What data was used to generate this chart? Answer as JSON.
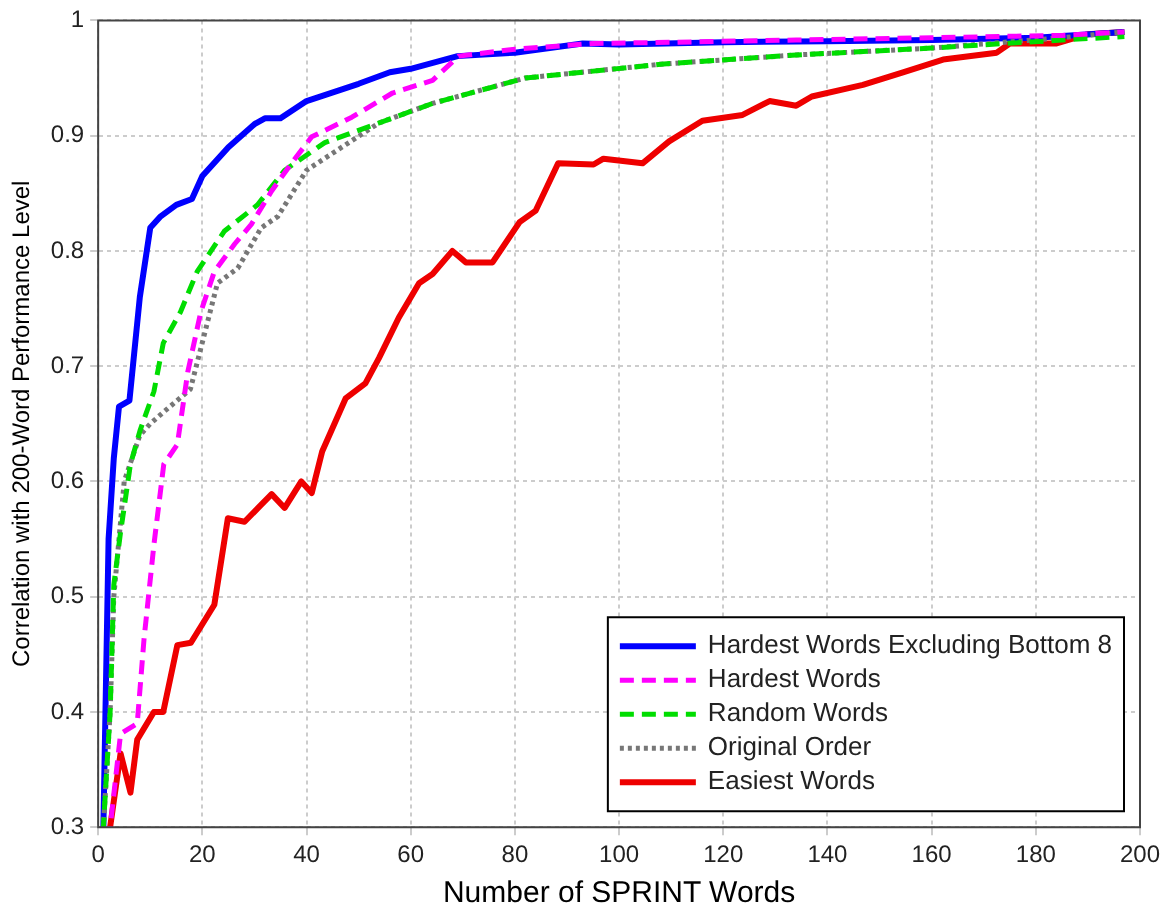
{
  "chart_data": {
    "type": "line",
    "xlabel": "Number of SPRINT Words",
    "ylabel": "Correlation with 200-Word Performance Level",
    "xlim": [
      0,
      200
    ],
    "xticks": [
      0,
      20,
      40,
      60,
      80,
      100,
      120,
      140,
      160,
      180,
      200
    ],
    "ylim": [
      0.3,
      1
    ],
    "yticks": [
      0.3,
      0.4,
      0.5,
      0.6,
      0.7,
      0.8,
      0.9,
      1
    ],
    "grid": true,
    "legend": "bottom right",
    "marker": "none",
    "series": [
      {
        "name": "Hardest Words Excluding Bottom 8",
        "color": "#0000ff",
        "line_style": "solid",
        "x": [
          1,
          2,
          3,
          4,
          6,
          8,
          10,
          12,
          15,
          18,
          20,
          25,
          30,
          32,
          35,
          40,
          50,
          56,
          60,
          69,
          80,
          93,
          100,
          120,
          140,
          160,
          180,
          197
        ],
        "values": [
          0.3,
          0.55,
          0.62,
          0.665,
          0.67,
          0.76,
          0.82,
          0.83,
          0.84,
          0.845,
          0.865,
          0.89,
          0.91,
          0.915,
          0.915,
          0.93,
          0.945,
          0.955,
          0.958,
          0.969,
          0.972,
          0.98,
          0.979,
          0.981,
          0.982,
          0.983,
          0.985,
          0.99
        ]
      },
      {
        "name": "Hardest Words",
        "color": "#ff00ff",
        "line_style": "dashed",
        "x": [
          2.3,
          4.3,
          7.5,
          8.8,
          10.7,
          12.6,
          15.2,
          17.2,
          19.7,
          22.3,
          26.2,
          29.4,
          33.3,
          37.1,
          41,
          48.7,
          56.5,
          64.2,
          69.2,
          80,
          95,
          110,
          134,
          160,
          185,
          197
        ],
        "values": [
          0.3,
          0.381,
          0.39,
          0.463,
          0.545,
          0.615,
          0.632,
          0.695,
          0.747,
          0.782,
          0.806,
          0.823,
          0.852,
          0.876,
          0.899,
          0.916,
          0.937,
          0.948,
          0.969,
          0.975,
          0.98,
          0.981,
          0.983,
          0.985,
          0.987,
          0.99
        ]
      },
      {
        "name": "Random Words",
        "color": "#00dd00",
        "line_style": "dashed",
        "x": [
          1,
          2.3,
          3,
          4.3,
          6.2,
          8.1,
          10.7,
          12.5,
          15.8,
          19,
          24.2,
          30.6,
          35.8,
          43.5,
          53.9,
          64.2,
          82,
          108,
          134,
          160,
          185,
          197
        ],
        "values": [
          0.3,
          0.4,
          0.51,
          0.556,
          0.615,
          0.645,
          0.678,
          0.72,
          0.747,
          0.782,
          0.817,
          0.84,
          0.87,
          0.894,
          0.911,
          0.928,
          0.95,
          0.962,
          0.97,
          0.976,
          0.983,
          0.986
        ]
      },
      {
        "name": "Original Order",
        "color": "#777777",
        "line_style": "dotted",
        "x": [
          1,
          2.3,
          3,
          5,
          8,
          10,
          12.5,
          17.7,
          22.9,
          26.8,
          31.3,
          34.5,
          40,
          53.9,
          64.2,
          82,
          108,
          134,
          160,
          185,
          197
        ],
        "values": [
          0.3,
          0.4,
          0.5,
          0.6,
          0.64,
          0.65,
          0.66,
          0.68,
          0.772,
          0.785,
          0.82,
          0.83,
          0.87,
          0.911,
          0.928,
          0.95,
          0.962,
          0.97,
          0.976,
          0.985,
          0.99
        ]
      },
      {
        "name": "Easiest Words",
        "color": "#ee0000",
        "line_style": "solid",
        "x": [
          2.3,
          4.3,
          6.2,
          7.5,
          10.7,
          12.5,
          15.2,
          17.8,
          22.3,
          24.9,
          28.1,
          33.3,
          35.8,
          39,
          41,
          43,
          47.5,
          51.3,
          53.9,
          57.7,
          61.6,
          64.2,
          68,
          70.6,
          75.7,
          80.9,
          84,
          88.3,
          95.1,
          97,
          104.5,
          109.6,
          116,
          123.7,
          128.9,
          134,
          137,
          146.8,
          154.5,
          162.2,
          172.5,
          175,
          184,
          190,
          197
        ],
        "values": [
          0.3,
          0.364,
          0.33,
          0.376,
          0.4,
          0.4,
          0.458,
          0.46,
          0.493,
          0.568,
          0.565,
          0.589,
          0.577,
          0.6,
          0.59,
          0.626,
          0.672,
          0.685,
          0.707,
          0.742,
          0.772,
          0.78,
          0.8,
          0.79,
          0.79,
          0.825,
          0.835,
          0.876,
          0.875,
          0.88,
          0.876,
          0.895,
          0.913,
          0.918,
          0.93,
          0.926,
          0.934,
          0.944,
          0.955,
          0.966,
          0.972,
          0.98,
          0.98,
          0.988,
          0.99
        ]
      }
    ]
  }
}
